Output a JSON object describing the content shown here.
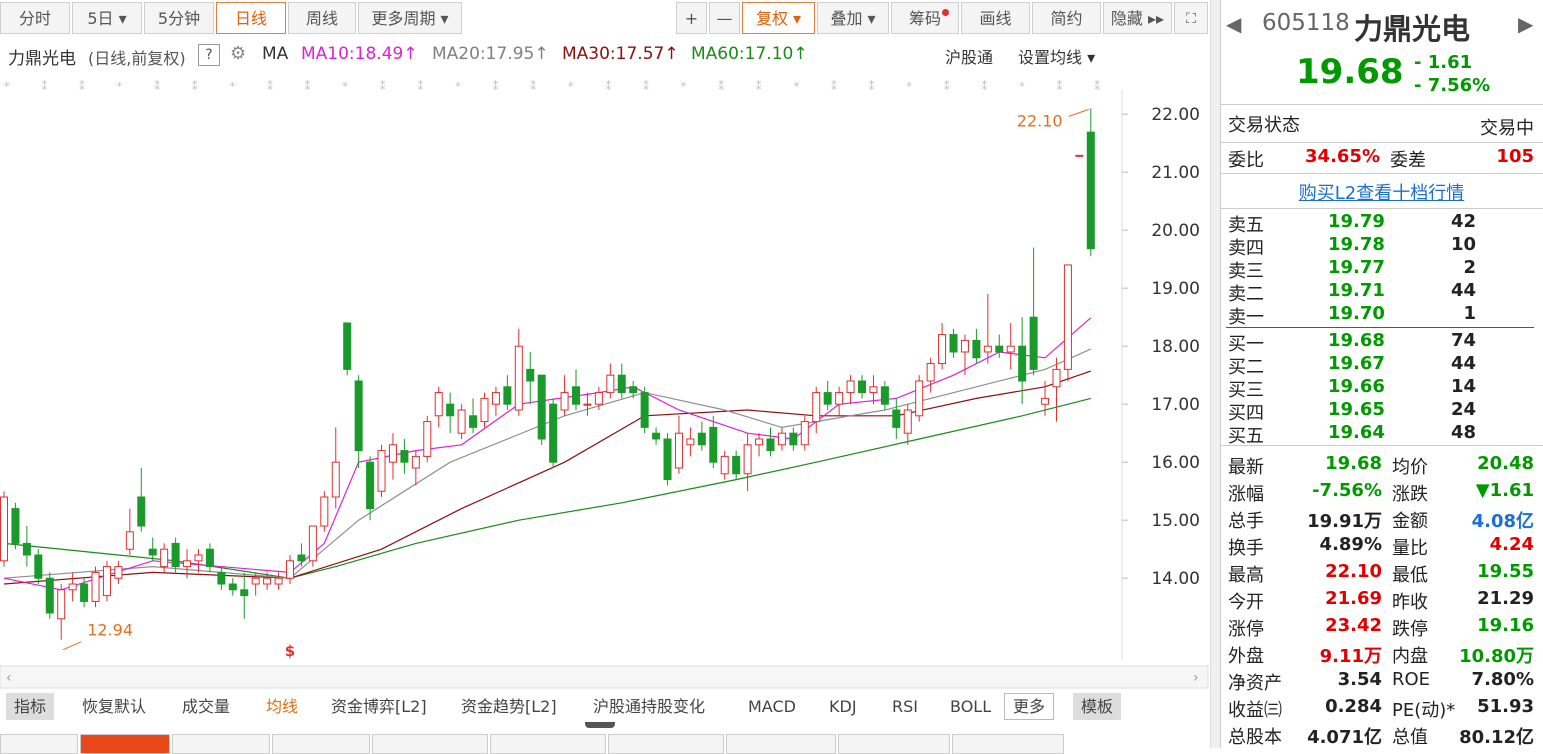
{
  "toolbar": {
    "tabs": [
      "分时",
      "5日 ▾",
      "5分钟",
      "日线",
      "周线",
      "更多周期 ▾"
    ],
    "active": 3,
    "tools": [
      "+",
      "—",
      "复权 ▾",
      "叠加 ▾",
      "筹码",
      "画线",
      "简约",
      "隐藏 ▸▸"
    ],
    "active_tool": 2
  },
  "legend": {
    "title": "力鼎光电",
    "subtitle": "(日线,前复权)",
    "help": "?",
    "ma": "MA",
    "items": [
      {
        "label": "MA10:18.49↑",
        "color": "#e020d8"
      },
      {
        "label": "MA20:17.95↑",
        "color": "#808080"
      },
      {
        "label": "MA30:17.57↑",
        "color": "#8b1010"
      },
      {
        "label": "MA60:17.10↑",
        "color": "#1a8a1a"
      }
    ],
    "links": [
      "沪股通",
      "设置均线 ▾"
    ]
  },
  "chart_data": {
    "type": "candlestick",
    "up_color": "#e03030",
    "down_color": "#1a9a2a",
    "open": [
      14.3,
      15.2,
      14.6,
      14.4,
      14.0,
      13.3,
      13.8,
      13.9,
      13.6,
      13.7,
      14.0,
      14.5,
      15.4,
      14.5,
      14.2,
      14.6,
      14.2,
      14.3,
      14.5,
      14.1,
      13.9,
      13.8,
      13.9,
      13.9,
      13.9,
      14.0,
      14.4,
      14.3,
      14.9,
      15.4,
      18.4,
      17.4,
      16.0,
      15.5,
      16.0,
      16.2,
      15.9,
      16.1,
      16.8,
      17.0,
      16.5,
      16.8,
      16.7,
      17.0,
      17.3,
      16.9,
      17.6,
      17.5,
      17.0,
      16.9,
      17.3,
      17.0,
      17.0,
      17.2,
      17.5,
      17.3,
      17.2,
      16.5,
      16.4,
      15.9,
      16.3,
      16.5,
      16.6,
      15.8,
      16.1,
      15.8,
      16.3,
      16.4,
      16.3,
      16.5,
      16.3,
      16.7,
      17.2,
      17.0,
      17.2,
      17.4,
      17.2,
      17.3,
      16.9,
      16.5,
      16.8,
      17.4,
      17.7,
      18.2,
      17.9,
      18.1,
      17.9,
      18.0,
      17.9,
      18.0,
      18.5,
      17.0,
      17.3,
      17.6,
      21.29,
      21.69
    ],
    "high": [
      15.5,
      15.3,
      14.9,
      14.5,
      14.1,
      13.9,
      14.1,
      14.0,
      14.2,
      14.3,
      14.3,
      15.2,
      15.9,
      14.7,
      14.6,
      14.7,
      14.5,
      14.5,
      14.6,
      14.2,
      14.0,
      14.1,
      14.1,
      14.1,
      14.1,
      14.4,
      14.6,
      14.9,
      15.5,
      16.6,
      18.4,
      17.5,
      16.1,
      16.3,
      16.5,
      16.4,
      16.2,
      16.8,
      17.3,
      17.2,
      17.0,
      17.1,
      17.2,
      17.3,
      17.5,
      18.3,
      17.9,
      17.5,
      17.1,
      17.5,
      17.6,
      17.2,
      17.3,
      17.7,
      17.7,
      17.4,
      17.3,
      16.6,
      16.5,
      16.8,
      16.6,
      16.7,
      16.8,
      16.2,
      16.2,
      16.5,
      16.5,
      16.6,
      16.6,
      16.6,
      16.8,
      17.3,
      17.4,
      17.3,
      17.5,
      17.5,
      17.5,
      17.4,
      17.1,
      17.0,
      17.5,
      17.8,
      18.4,
      18.3,
      18.2,
      18.3,
      18.9,
      18.2,
      18.4,
      18.5,
      19.7,
      17.4,
      17.8,
      19.4,
      21.29,
      22.1
    ],
    "low": [
      14.2,
      14.5,
      14.2,
      13.9,
      13.3,
      12.94,
      13.6,
      13.5,
      13.5,
      13.6,
      13.9,
      14.4,
      14.8,
      14.3,
      14.1,
      14.1,
      14.0,
      14.1,
      14.1,
      13.8,
      13.7,
      13.3,
      13.7,
      13.8,
      13.8,
      13.9,
      14.2,
      14.2,
      14.8,
      15.2,
      17.5,
      15.9,
      15.0,
      15.4,
      15.7,
      15.8,
      15.6,
      16.0,
      16.6,
      16.5,
      16.4,
      16.5,
      16.6,
      16.8,
      16.9,
      16.8,
      17.0,
      16.3,
      15.9,
      16.8,
      16.9,
      16.8,
      16.9,
      17.1,
      17.1,
      17.1,
      16.5,
      16.3,
      15.6,
      15.8,
      16.1,
      16.2,
      15.9,
      15.7,
      15.7,
      15.5,
      16.1,
      16.1,
      16.2,
      16.2,
      16.2,
      16.5,
      16.9,
      16.8,
      17.0,
      17.1,
      17.0,
      16.9,
      16.4,
      16.3,
      16.7,
      17.2,
      17.6,
      17.8,
      17.5,
      17.7,
      17.7,
      17.8,
      17.6,
      17.0,
      17.5,
      16.8,
      16.7,
      17.4,
      21.29,
      19.55
    ],
    "close": [
      15.4,
      14.6,
      14.4,
      14.0,
      13.4,
      13.8,
      13.9,
      13.6,
      14.1,
      14.2,
      14.2,
      14.8,
      14.9,
      14.4,
      14.5,
      14.2,
      14.3,
      14.4,
      14.2,
      13.9,
      13.8,
      13.7,
      14.0,
      14.0,
      14.0,
      14.3,
      14.3,
      14.9,
      15.4,
      16.0,
      17.6,
      16.2,
      15.2,
      16.2,
      16.3,
      16.0,
      16.1,
      16.7,
      17.2,
      16.8,
      16.9,
      16.6,
      17.1,
      17.2,
      17.0,
      18.0,
      17.4,
      16.4,
      16.0,
      17.2,
      17.0,
      17.0,
      17.2,
      17.5,
      17.2,
      17.2,
      16.6,
      16.4,
      15.7,
      16.5,
      16.4,
      16.3,
      16.0,
      16.1,
      15.8,
      16.3,
      16.4,
      16.2,
      16.5,
      16.3,
      16.7,
      17.2,
      17.0,
      17.2,
      17.4,
      17.2,
      17.3,
      17.0,
      16.6,
      16.9,
      17.4,
      17.7,
      18.2,
      17.9,
      18.1,
      17.8,
      18.0,
      17.9,
      18.0,
      17.4,
      17.6,
      17.1,
      17.6,
      19.4,
      21.29,
      19.68
    ],
    "ma_lines": [
      {
        "color": "#1a8a1a",
        "x": [
          0,
          15,
          25,
          29,
          36,
          45,
          54,
          64,
          71,
          80,
          89,
          95
        ],
        "values": [
          14.6,
          14.3,
          14.0,
          14.2,
          14.6,
          15.0,
          15.3,
          15.7,
          16.0,
          16.4,
          16.8,
          17.1
        ]
      },
      {
        "color": "#8b1010",
        "x": [
          0,
          13,
          25,
          33,
          40,
          49,
          56,
          65,
          71,
          78,
          85,
          91,
          95
        ],
        "values": [
          13.9,
          14.1,
          14.0,
          14.5,
          15.2,
          16.0,
          16.8,
          16.9,
          16.8,
          16.8,
          17.1,
          17.3,
          17.57
        ]
      },
      {
        "color": "#909090",
        "x": [
          0,
          13,
          25,
          31,
          39,
          49,
          56,
          63,
          68,
          77,
          85,
          91,
          95
        ],
        "values": [
          14.0,
          14.2,
          14.0,
          15.0,
          16.0,
          16.8,
          17.2,
          16.9,
          16.6,
          16.9,
          17.3,
          17.6,
          17.95
        ]
      },
      {
        "color": "#e020d8",
        "x": [
          0,
          5,
          13,
          25,
          28,
          31,
          36,
          40,
          45,
          52,
          55,
          59,
          65,
          69,
          73,
          78,
          83,
          87,
          91,
          95
        ],
        "values": [
          14.0,
          13.8,
          14.3,
          14.1,
          14.6,
          16.0,
          16.2,
          16.3,
          17.0,
          17.2,
          17.3,
          16.9,
          16.5,
          16.4,
          17.0,
          17.1,
          17.5,
          17.9,
          17.8,
          18.49
        ]
      }
    ],
    "annotations": [
      {
        "index": 95,
        "value": 22.1,
        "label": "22.10"
      },
      {
        "index": 5,
        "value": 12.94,
        "label": "12.94"
      }
    ],
    "marker": {
      "index": 25,
      "label": "$"
    },
    "ylim": [
      12.59,
      22.33
    ],
    "yticks": [
      {
        "value": 14,
        "label": "14.00"
      },
      {
        "value": 15,
        "label": "15.00"
      },
      {
        "value": 16,
        "label": "16.00"
      },
      {
        "value": 17,
        "label": "17.00"
      },
      {
        "value": 18,
        "label": "18.00"
      },
      {
        "value": 19,
        "label": "19.00"
      },
      {
        "value": 20,
        "label": "20.00"
      },
      {
        "value": 21,
        "label": "21.00"
      },
      {
        "value": 22,
        "label": "22.00"
      }
    ]
  },
  "indicator_tabs": {
    "items": [
      "指标",
      "恢复默认",
      "成交量",
      "均线",
      "资金博弈[L2]",
      "资金趋势[L2]",
      "沪股通持股变化",
      "MACD",
      "KDJ",
      "RSI",
      "BOLL",
      "更多",
      "模板"
    ],
    "active": 3
  },
  "quote": {
    "code": "605118",
    "name": "力鼎光电",
    "price": "19.68",
    "change": "- 1.61",
    "pct": "- 7.56%",
    "status": [
      "交易状态",
      "交易中"
    ],
    "ratio": [
      "委比",
      "34.65%",
      "委差",
      "105"
    ],
    "l2_link": "购买L2查看十档行情",
    "asks": [
      [
        "卖五",
        "19.79",
        "42"
      ],
      [
        "卖四",
        "19.78",
        "10"
      ],
      [
        "卖三",
        "19.77",
        "2"
      ],
      [
        "卖二",
        "19.71",
        "44"
      ],
      [
        "卖一",
        "19.70",
        "1"
      ]
    ],
    "bids": [
      [
        "买一",
        "19.68",
        "74"
      ],
      [
        "买二",
        "19.67",
        "44"
      ],
      [
        "买三",
        "19.66",
        "14"
      ],
      [
        "买四",
        "19.65",
        "24"
      ],
      [
        "买五",
        "19.64",
        "48"
      ]
    ],
    "stats": [
      [
        [
          "最新",
          "19.68",
          "g"
        ],
        [
          "均价",
          "20.48",
          "g"
        ]
      ],
      [
        [
          "涨幅",
          "-7.56%",
          "g"
        ],
        [
          "涨跌",
          "▼1.61",
          "g"
        ]
      ],
      [
        [
          "总手",
          "19.91万",
          "k"
        ],
        [
          "金额",
          "4.08亿",
          "b"
        ]
      ],
      [
        [
          "换手",
          "4.89%",
          "k"
        ],
        [
          "量比",
          "4.24",
          "r"
        ]
      ],
      [
        [
          "最高",
          "22.10",
          "r"
        ],
        [
          "最低",
          "19.55",
          "g"
        ]
      ],
      [
        [
          "今开",
          "21.69",
          "r"
        ],
        [
          "昨收",
          "21.29",
          "k"
        ]
      ],
      [
        [
          "涨停",
          "23.42",
          "r"
        ],
        [
          "跌停",
          "19.16",
          "g"
        ]
      ],
      [
        [
          "外盘",
          "9.11万",
          "r"
        ],
        [
          "内盘",
          "10.80万",
          "g"
        ]
      ],
      [
        [
          "净资产",
          "3.54",
          "k"
        ],
        [
          "ROE",
          "7.80%",
          "k"
        ]
      ],
      [
        [
          "收益㈢",
          "0.284",
          "k"
        ],
        [
          "PE(动)*",
          "51.93",
          "k"
        ]
      ],
      [
        [
          "总股本",
          "4.071亿",
          "k"
        ],
        [
          "总值",
          "80.12亿",
          "k"
        ]
      ]
    ]
  }
}
